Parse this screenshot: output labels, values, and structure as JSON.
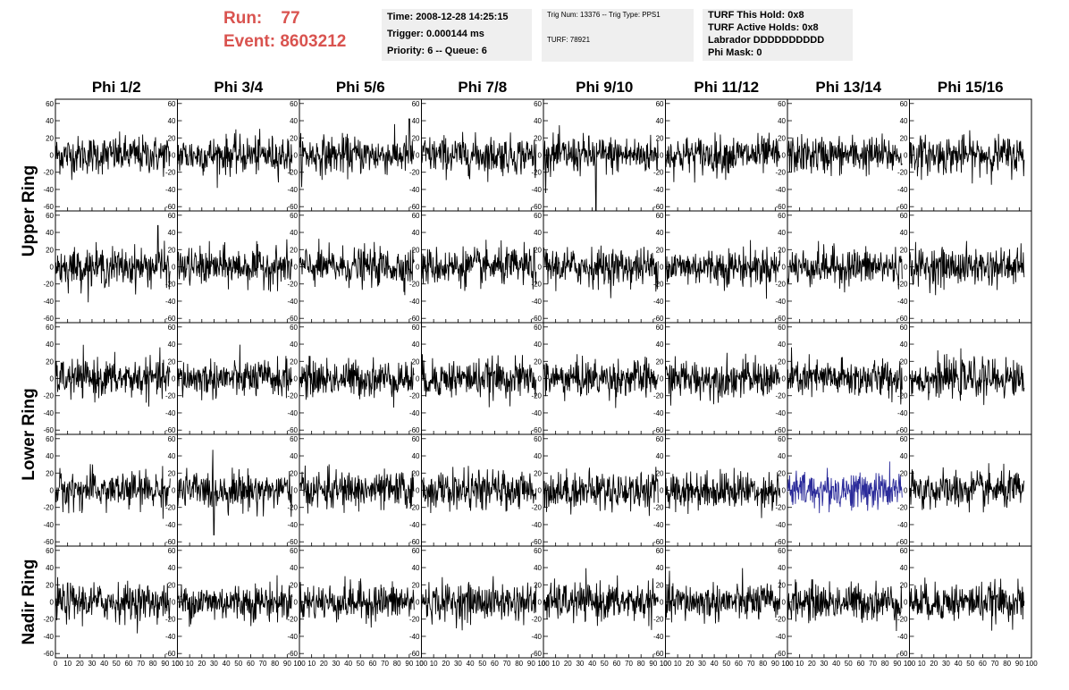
{
  "header": {
    "run_label": "Run:",
    "run_value": "77",
    "event_label": "Event:",
    "event_value": "8603212",
    "accent_color": "#d9534f"
  },
  "info_boxes": {
    "time_line": "Time: 2008-12-28 14:25:15",
    "trigger_line": "Trigger: 0.000144 ms",
    "priority_line": "Priority: 6 -- Queue: 6",
    "trig_line": "Trig Num: 13376 -- Trig Type: PPS1",
    "turf_line": "TURF: 78921",
    "hold_line": "TURF This Hold: 0x8",
    "active_holds_line": "TURF Active Holds: 0x8",
    "labrador_line": "Labrador DDDDDDDDDD",
    "phi_mask_line": "Phi Mask: 0"
  },
  "chart_data": {
    "type": "line",
    "columns": [
      "Phi 1/2",
      "Phi 3/4",
      "Phi 5/6",
      "Phi 7/8",
      "Phi 9/10",
      "Phi 11/12",
      "Phi 13/14",
      "Phi 15/16"
    ],
    "ring_labels": [
      {
        "label": "Upper Ring",
        "rows": [
          0,
          1
        ]
      },
      {
        "label": "Lower Ring",
        "rows": [
          2,
          3
        ]
      },
      {
        "label": "Nadir Ring",
        "rows": [
          4
        ]
      }
    ],
    "rows": 5,
    "xlim": [
      0,
      100
    ],
    "ylim": [
      -65,
      65
    ],
    "y_ticks": [
      -60,
      -40,
      -20,
      0,
      20,
      40,
      60
    ],
    "x_ticks": [
      0,
      10,
      20,
      30,
      40,
      50,
      60,
      70,
      80,
      90,
      100
    ],
    "x_tick_labels": [
      "0",
      "10",
      "20",
      "30",
      "40",
      "50",
      "60",
      "70",
      "80",
      "90",
      "100"
    ],
    "x_data_range": [
      0,
      94
    ],
    "sample_count": 260,
    "amplitude_rms": 11,
    "line_color": "#000000",
    "highlight": {
      "row": 3,
      "col": 6,
      "color": "#2b2b9a"
    },
    "spikes": [
      {
        "row": 0,
        "col": 4,
        "x": 43,
        "y": -65
      },
      {
        "row": 0,
        "col": 2,
        "x": 90,
        "y": 42
      },
      {
        "row": 1,
        "col": 0,
        "x": 84,
        "y": 48
      },
      {
        "row": 3,
        "col": 1,
        "x": 30,
        "y": -52
      }
    ]
  }
}
